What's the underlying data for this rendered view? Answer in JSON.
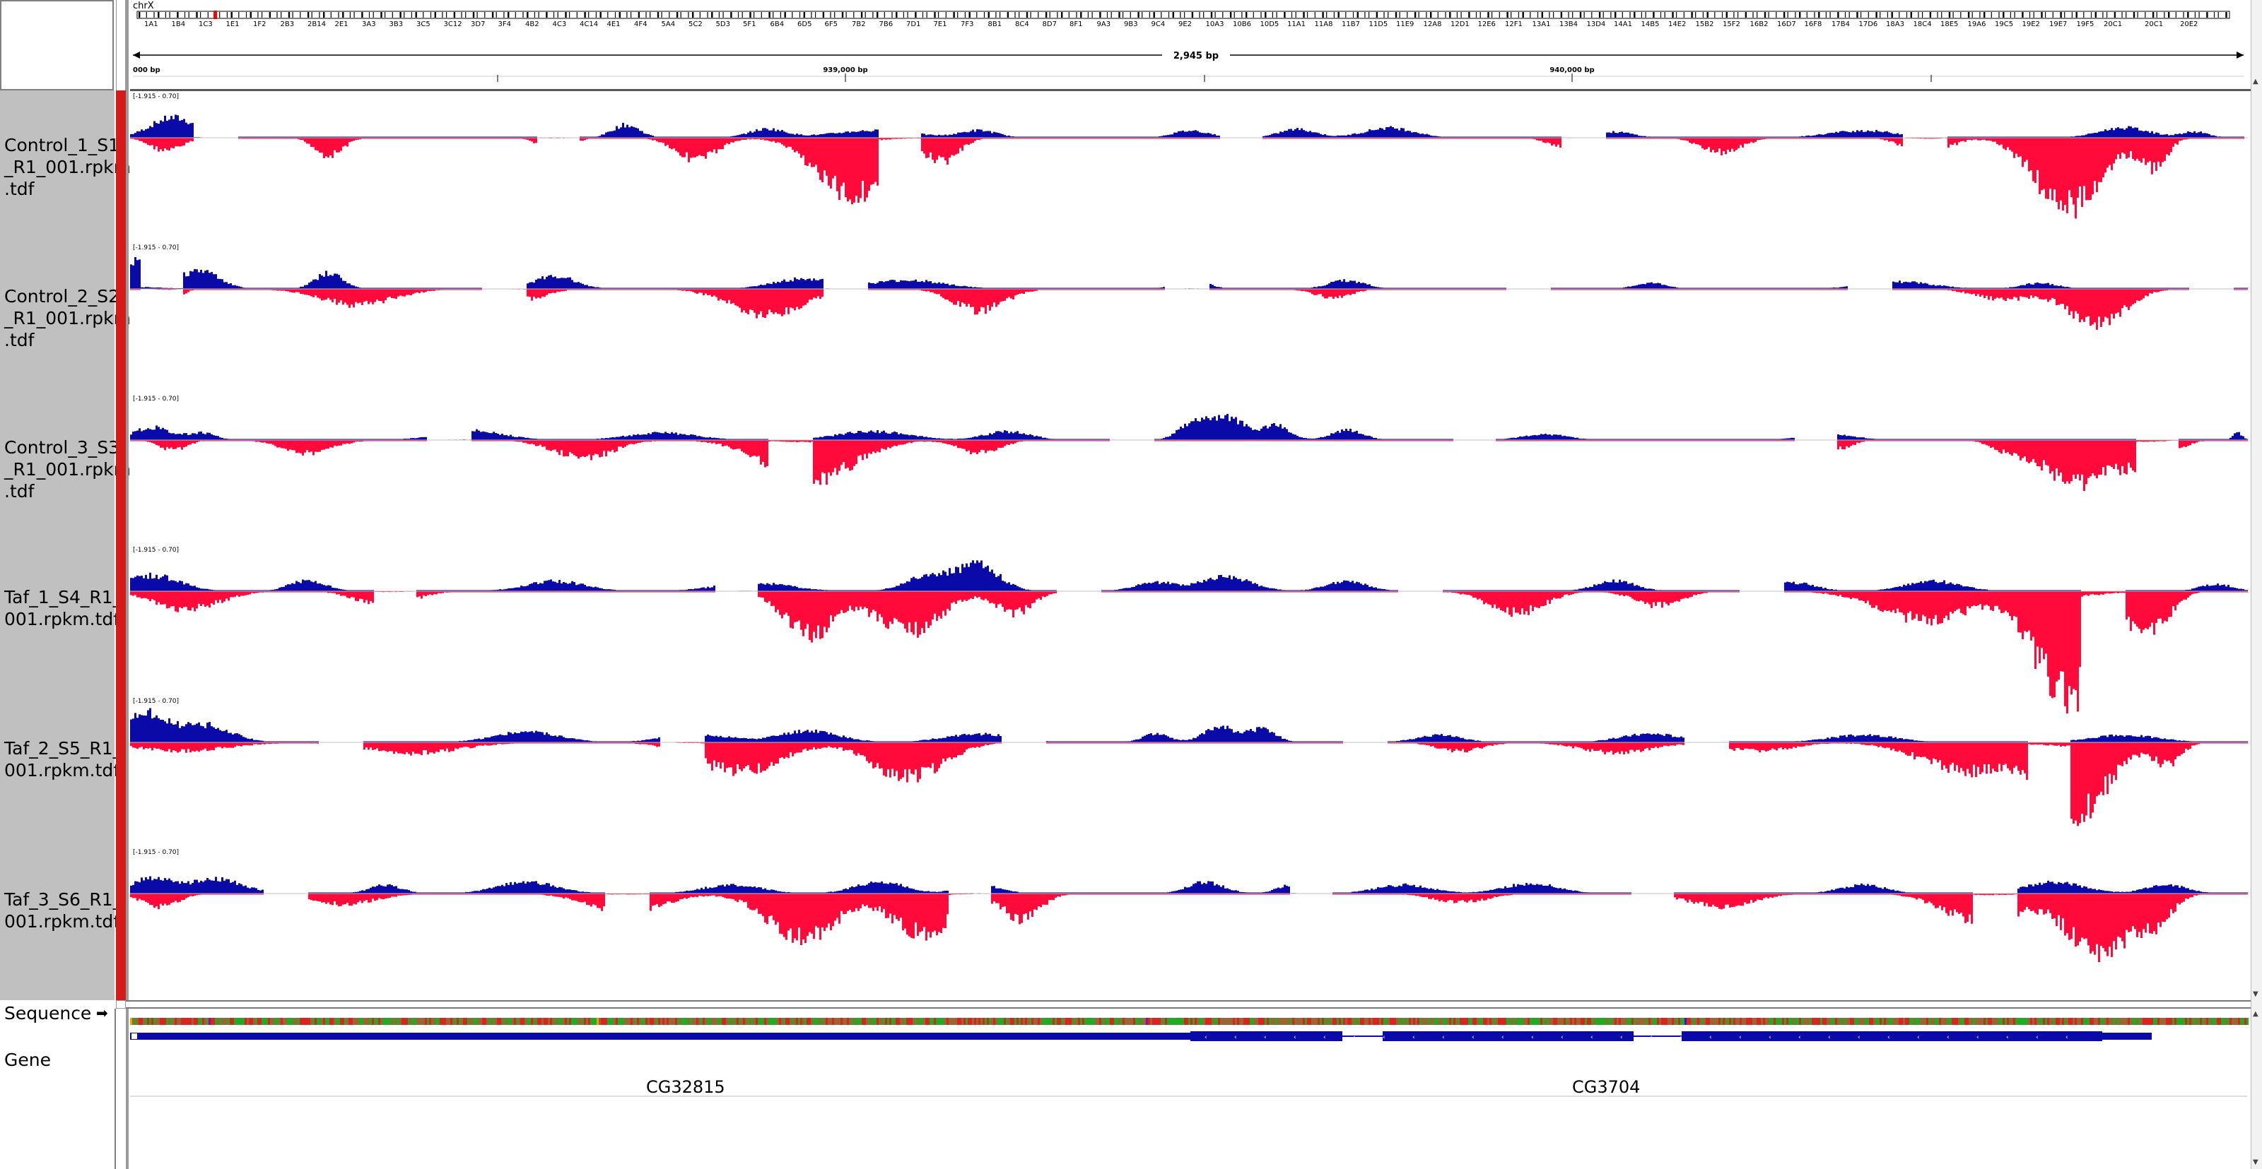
{
  "locus": {
    "chromosome": "chrX",
    "span_label": "2,945 bp",
    "tick_labels": [
      "000 bp",
      "939,000 bp",
      "940,000 bp"
    ],
    "bands": [
      "1A1",
      "1B4",
      "1C3",
      "1E1",
      "1F2",
      "2B3",
      "2B14",
      "2E1",
      "3A3",
      "3B3",
      "3C5",
      "3C12",
      "3D7",
      "3F4",
      "4B2",
      "4C3",
      "4C14",
      "4E1",
      "4F4",
      "5A4",
      "5C2",
      "5D3",
      "5F1",
      "6B4",
      "6D5",
      "6F5",
      "7B2",
      "7B6",
      "7D1",
      "7E1",
      "7F3",
      "8B1",
      "8C4",
      "8D7",
      "8F1",
      "9A3",
      "9B3",
      "9C4",
      "9E2",
      "10A3",
      "10B6",
      "10D5",
      "11A1",
      "11A8",
      "11B7",
      "11D5",
      "11E9",
      "12A8",
      "12D1",
      "12E6",
      "12F1",
      "13A1",
      "13B4",
      "13D4",
      "14A1",
      "14B5",
      "14E2",
      "15B2",
      "15F2",
      "16B2",
      "16D7",
      "16F8",
      "17B4",
      "17D6",
      "18A3",
      "18C4",
      "18E5",
      "19A6",
      "19C5",
      "19E2",
      "19E7",
      "19F5",
      "20C1",
      "20E2"
    ]
  },
  "tracks": [
    {
      "name": "Control_1_S1\n_R1_001.rpkm\n.tdf",
      "range": "[-1.915 - 0.70]"
    },
    {
      "name": "Control_2_S2\n_R1_001.rpkm\n.tdf",
      "range": "[-1.915 - 0.70]"
    },
    {
      "name": "Control_3_S3\n_R1_001.rpkm\n.tdf",
      "range": "[-1.915 - 0.70]"
    },
    {
      "name": "Taf_1_S4_R1_\n001.rpkm.tdf",
      "range": "[-1.915 - 0.70]"
    },
    {
      "name": "Taf_2_S5_R1_\n001.rpkm.tdf",
      "range": "[-1.915 - 0.70]"
    },
    {
      "name": "Taf_3_S6_R1_\n001.rpkm.tdf",
      "range": "[-1.915 - 0.70]"
    }
  ],
  "lower_tracks": {
    "sequence_label": "Sequence",
    "sequence_arrow": "➡",
    "gene_label": "Gene",
    "genes": [
      "CG32815",
      "CG3704"
    ]
  },
  "colors": {
    "positive": "#0a0aa8",
    "negative": "#ff0a3a",
    "attribute": "#d61a1a",
    "name_panel": "#c0c0c0"
  }
}
